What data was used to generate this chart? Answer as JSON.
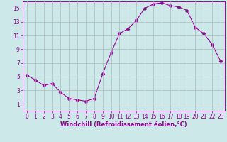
{
  "x": [
    0,
    1,
    2,
    3,
    4,
    5,
    6,
    7,
    8,
    9,
    10,
    11,
    12,
    13,
    14,
    15,
    16,
    17,
    18,
    19,
    20,
    21,
    22,
    23
  ],
  "y": [
    5.2,
    4.5,
    3.7,
    4.0,
    2.7,
    1.8,
    1.6,
    1.4,
    1.8,
    5.4,
    8.5,
    11.3,
    12.0,
    13.2,
    15.0,
    15.6,
    15.8,
    15.4,
    15.2,
    14.7,
    12.2,
    11.3,
    9.7,
    7.3
  ],
  "line_color": "#990099",
  "marker": "D",
  "marker_size": 2.5,
  "bg_color": "#cce8e8",
  "grid_color": "#aabbbb",
  "xlabel": "Windchill (Refroidissement éolien,°C)",
  "xlim": [
    -0.5,
    23.5
  ],
  "ylim": [
    0,
    16
  ],
  "yticks": [
    1,
    3,
    5,
    7,
    9,
    11,
    13,
    15
  ],
  "xticks": [
    0,
    1,
    2,
    3,
    4,
    5,
    6,
    7,
    8,
    9,
    10,
    11,
    12,
    13,
    14,
    15,
    16,
    17,
    18,
    19,
    20,
    21,
    22,
    23
  ],
  "label_color": "#990099",
  "tick_color": "#990099",
  "axis_color": "#990099",
  "tick_fontsize": 5.5,
  "xlabel_fontsize": 6.0
}
